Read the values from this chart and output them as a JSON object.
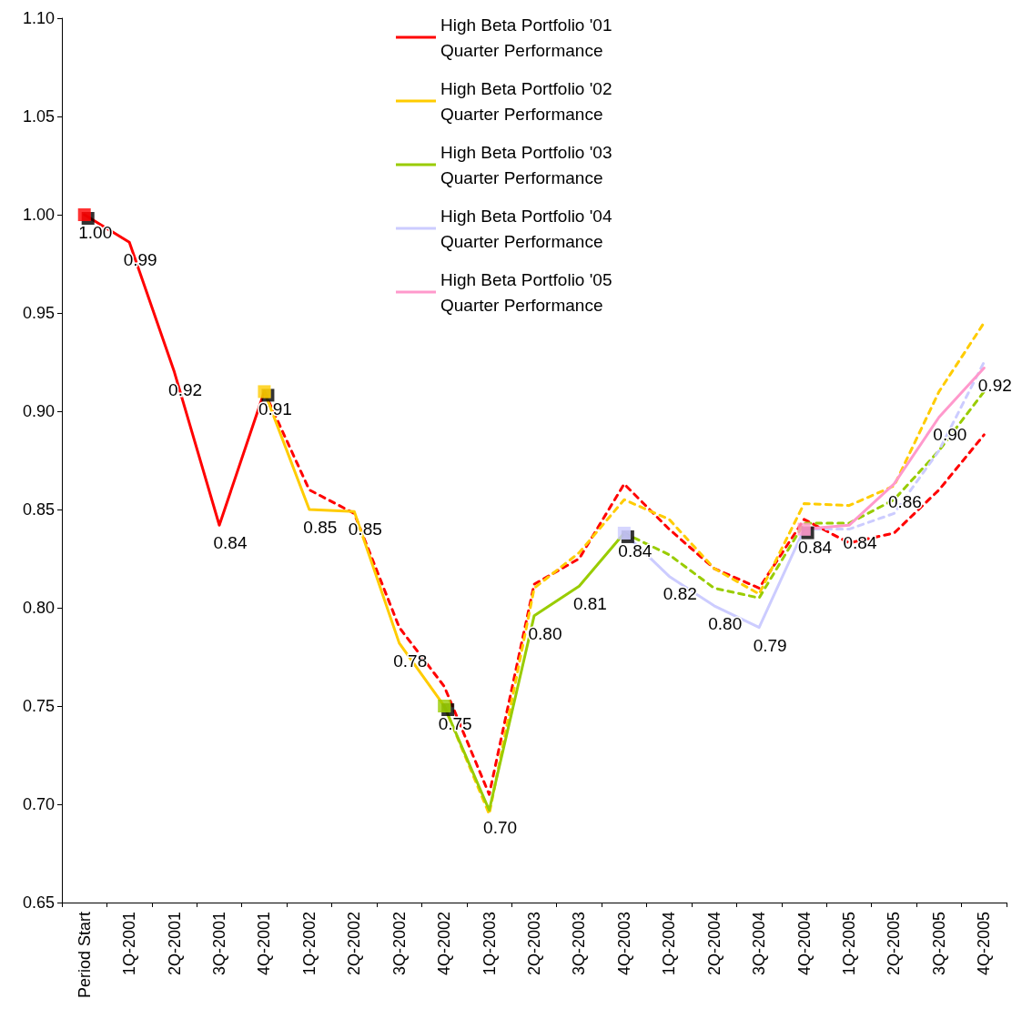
{
  "chart_data": {
    "type": "line",
    "categories": [
      "Period Start",
      "1Q-2001",
      "2Q-2001",
      "3Q-2001",
      "4Q-2001",
      "1Q-2002",
      "2Q-2002",
      "3Q-2002",
      "4Q-2002",
      "1Q-2003",
      "2Q-2003",
      "3Q-2003",
      "4Q-2003",
      "1Q-2004",
      "2Q-2004",
      "3Q-2004",
      "4Q-2004",
      "1Q-2005",
      "2Q-2005",
      "3Q-2005",
      "4Q-2005"
    ],
    "ylim": [
      0.65,
      1.1
    ],
    "yticks": [
      "0.65",
      "0.70",
      "0.75",
      "0.80",
      "0.85",
      "0.90",
      "0.95",
      "1.00",
      "1.05",
      "1.10"
    ],
    "grid": false,
    "legend": "top",
    "marker": "none",
    "series": [
      {
        "name": "High Beta Portfolio '01 Quarter Performance",
        "color": "#ff0000",
        "line_style": "solid",
        "values": [
          1.0,
          0.986,
          0.92,
          0.842,
          0.91,
          null,
          null,
          null,
          null,
          null,
          null,
          null,
          null,
          null,
          null,
          null,
          null,
          null,
          null,
          null,
          null
        ],
        "value_labels": [
          "1.00",
          "0.99",
          "0.92",
          "0.84",
          null,
          null,
          null,
          null,
          null,
          null,
          null,
          null,
          null,
          null,
          null,
          null,
          null,
          null,
          null,
          null,
          null
        ]
      },
      {
        "name": "High Beta Portfolio '02 Quarter Performance",
        "color": "#ffcc00",
        "line_style": "solid",
        "values": [
          null,
          null,
          null,
          null,
          0.91,
          0.85,
          0.849,
          0.782,
          0.75,
          null,
          null,
          null,
          null,
          null,
          null,
          null,
          null,
          null,
          null,
          null,
          null
        ],
        "value_labels": [
          null,
          null,
          null,
          null,
          "0.91",
          "0.85",
          "0.85",
          "0.78",
          null,
          null,
          null,
          null,
          null,
          null,
          null,
          null,
          null,
          null,
          null,
          null,
          null
        ]
      },
      {
        "name": "High Beta Portfolio '03 Quarter Performance",
        "color": "#99cc00",
        "line_style": "solid",
        "values": [
          null,
          null,
          null,
          null,
          null,
          null,
          null,
          null,
          0.75,
          0.697,
          0.796,
          0.811,
          0.838,
          null,
          null,
          null,
          null,
          null,
          null,
          null,
          null
        ],
        "value_labels": [
          null,
          null,
          null,
          null,
          null,
          null,
          null,
          null,
          "0.75",
          "0.70",
          "0.80",
          "0.81",
          null,
          null,
          null,
          null,
          null,
          null,
          null,
          null,
          null
        ]
      },
      {
        "name": "High Beta Portfolio '04 Quarter Performance",
        "color": "#ccccff",
        "line_style": "solid",
        "values": [
          null,
          null,
          null,
          null,
          null,
          null,
          null,
          null,
          null,
          null,
          null,
          null,
          0.838,
          0.816,
          0.801,
          0.79,
          0.84,
          null,
          null,
          null,
          null
        ],
        "value_labels": [
          null,
          null,
          null,
          null,
          null,
          null,
          null,
          null,
          null,
          null,
          null,
          null,
          "0.84",
          "0.82",
          "0.80",
          "0.79",
          null,
          null,
          null,
          null,
          null
        ]
      },
      {
        "name": "High Beta Portfolio '05 Quarter Performance",
        "color": "#ff99cc",
        "line_style": "solid",
        "values": [
          null,
          null,
          null,
          null,
          null,
          null,
          null,
          null,
          null,
          null,
          null,
          null,
          null,
          null,
          null,
          null,
          0.84,
          0.842,
          0.863,
          0.897,
          0.922
        ],
        "value_labels": [
          null,
          null,
          null,
          null,
          null,
          null,
          null,
          null,
          null,
          null,
          null,
          null,
          null,
          null,
          null,
          null,
          "0.84",
          "0.84",
          "0.86",
          "0.90",
          "0.92"
        ]
      },
      {
        "color": "#ff0000",
        "line_style": "dashed",
        "values": [
          null,
          null,
          null,
          null,
          0.91,
          0.86,
          0.848,
          0.79,
          0.76,
          0.705,
          0.812,
          0.825,
          0.863,
          0.84,
          0.82,
          0.81,
          0.845,
          0.833,
          0.838,
          0.86,
          0.888
        ]
      },
      {
        "color": "#ffcc00",
        "line_style": "dashed",
        "values": [
          null,
          null,
          null,
          null,
          null,
          null,
          null,
          null,
          0.75,
          0.695,
          0.81,
          0.828,
          0.855,
          0.845,
          0.82,
          0.807,
          0.853,
          0.852,
          0.862,
          0.91,
          0.945
        ]
      },
      {
        "color": "#99cc00",
        "line_style": "dashed",
        "values": [
          null,
          null,
          null,
          null,
          null,
          null,
          null,
          null,
          null,
          null,
          null,
          null,
          0.838,
          0.827,
          0.81,
          0.805,
          0.843,
          0.843,
          0.855,
          0.88,
          0.91
        ]
      },
      {
        "color": "#ccccff",
        "line_style": "dashed",
        "values": [
          null,
          null,
          null,
          null,
          null,
          null,
          null,
          null,
          null,
          null,
          null,
          null,
          null,
          null,
          null,
          null,
          0.84,
          0.84,
          0.848,
          0.88,
          0.925
        ]
      },
      {
        "type": "scatter",
        "marker": "square",
        "color": "#ff0000",
        "values": [
          1.0,
          null,
          null,
          null,
          null,
          null,
          null,
          null,
          null,
          null,
          null,
          null,
          null,
          null,
          null,
          null,
          null,
          null,
          null,
          null,
          null
        ]
      },
      {
        "type": "scatter",
        "marker": "square",
        "color": "#ffcc00",
        "values": [
          null,
          null,
          null,
          null,
          0.91,
          null,
          null,
          null,
          null,
          null,
          null,
          null,
          null,
          null,
          null,
          null,
          null,
          null,
          null,
          null,
          null
        ]
      },
      {
        "type": "scatter",
        "marker": "square",
        "color": "#99cc00",
        "values": [
          null,
          null,
          null,
          null,
          null,
          null,
          null,
          null,
          0.75,
          null,
          null,
          null,
          null,
          null,
          null,
          null,
          null,
          null,
          null,
          null,
          null
        ]
      },
      {
        "type": "scatter",
        "marker": "square",
        "color": "#ccccff",
        "values": [
          null,
          null,
          null,
          null,
          null,
          null,
          null,
          null,
          null,
          null,
          null,
          null,
          0.838,
          null,
          null,
          null,
          null,
          null,
          null,
          null,
          null
        ]
      },
      {
        "type": "scatter",
        "marker": "square",
        "color": "#ff99cc",
        "values": [
          null,
          null,
          null,
          null,
          null,
          null,
          null,
          null,
          null,
          null,
          null,
          null,
          null,
          null,
          null,
          null,
          0.84,
          null,
          null,
          null,
          null
        ]
      }
    ]
  }
}
